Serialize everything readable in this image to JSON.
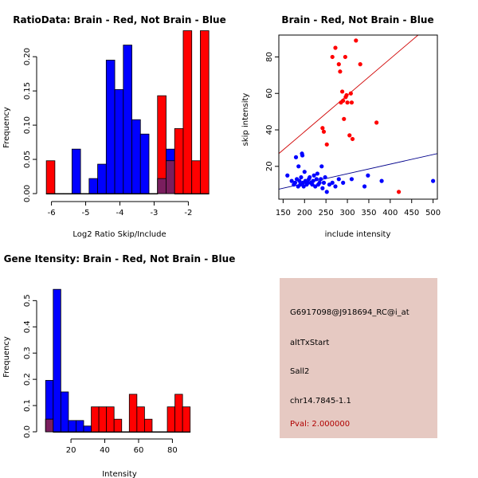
{
  "colors": {
    "brain": "#ff0000",
    "not_brain": "#0000ff",
    "overlap": "#7a1e5e",
    "info_bg": "#e6c9c2",
    "pval": "#b00000"
  },
  "chart_data": [
    {
      "id": "ratio",
      "type": "bar",
      "title": "RatioData: Brain - Red, Not Brain - Blue",
      "xlabel": "Log2 Ratio Skip/Include",
      "ylabel": "Frequency",
      "xlim": [
        -6.2,
        -1.8
      ],
      "ylim": [
        0,
        0.22
      ],
      "xticks": [
        -6,
        -5,
        -4,
        -3,
        -2
      ],
      "yticks": [
        0.0,
        0.05,
        0.1,
        0.15,
        0.2
      ],
      "ytick_labels": [
        "0.00",
        "0.05",
        "0.10",
        "0.15",
        "0.20"
      ],
      "bin_start": -6.15,
      "bin_width": 0.25,
      "series": [
        {
          "name": "Not Brain",
          "color": "blue",
          "values": [
            0,
            0,
            0,
            0.065,
            0,
            0.022,
            0.043,
            0.195,
            0.152,
            0.217,
            0.108,
            0.087,
            0,
            0.022,
            0.065,
            0,
            0,
            0,
            0
          ]
        },
        {
          "name": "Brain",
          "color": "red",
          "values": [
            0.048,
            0,
            0,
            0,
            0,
            0,
            0,
            0,
            0,
            0,
            0,
            0,
            0,
            0.143,
            0.048,
            0.095,
            0.238,
            0.048,
            0.238
          ]
        }
      ]
    },
    {
      "id": "scatter",
      "type": "scatter",
      "title": "Brain - Red, Not Brain - Blue",
      "xlabel": "include intensity",
      "ylabel": "skip intensity",
      "xlim": [
        140,
        510
      ],
      "ylim": [
        2,
        92
      ],
      "xticks": [
        150,
        200,
        250,
        300,
        350,
        400,
        450,
        500
      ],
      "yticks": [
        20,
        40,
        60,
        80
      ],
      "series": [
        {
          "name": "Not Brain",
          "color": "blue",
          "points": [
            [
              160,
              15
            ],
            [
              170,
              12
            ],
            [
              175,
              10
            ],
            [
              178,
              11
            ],
            [
              180,
              25
            ],
            [
              182,
              13
            ],
            [
              185,
              9
            ],
            [
              186,
              20
            ],
            [
              188,
              12
            ],
            [
              190,
              10
            ],
            [
              192,
              14
            ],
            [
              194,
              27
            ],
            [
              195,
              26
            ],
            [
              196,
              11
            ],
            [
              198,
              9
            ],
            [
              200,
              17
            ],
            [
              202,
              12
            ],
            [
              205,
              10
            ],
            [
              208,
              11
            ],
            [
              210,
              13
            ],
            [
              212,
              14
            ],
            [
              215,
              11
            ],
            [
              218,
              10
            ],
            [
              220,
              12
            ],
            [
              222,
              15
            ],
            [
              225,
              9
            ],
            [
              228,
              13
            ],
            [
              230,
              16
            ],
            [
              232,
              10
            ],
            [
              235,
              11
            ],
            [
              238,
              13
            ],
            [
              240,
              20
            ],
            [
              242,
              8
            ],
            [
              245,
              11
            ],
            [
              248,
              14
            ],
            [
              252,
              6
            ],
            [
              258,
              10
            ],
            [
              265,
              11
            ],
            [
              272,
              9
            ],
            [
              280,
              13
            ],
            [
              290,
              11
            ],
            [
              310,
              13
            ],
            [
              340,
              9
            ],
            [
              348,
              15
            ],
            [
              380,
              12
            ],
            [
              500,
              12
            ]
          ],
          "trend": [
            [
              140,
              7.5
            ],
            [
              510,
              27
            ]
          ]
        },
        {
          "name": "Brain",
          "color": "red",
          "points": [
            [
              242,
              41
            ],
            [
              245,
              39
            ],
            [
              252,
              32
            ],
            [
              265,
              80
            ],
            [
              272,
              85
            ],
            [
              280,
              76
            ],
            [
              283,
              72
            ],
            [
              285,
              55
            ],
            [
              288,
              61
            ],
            [
              290,
              56
            ],
            [
              292,
              46
            ],
            [
              295,
              80
            ],
            [
              296,
              58
            ],
            [
              298,
              59
            ],
            [
              300,
              55
            ],
            [
              305,
              37
            ],
            [
              308,
              60
            ],
            [
              310,
              55
            ],
            [
              312,
              35
            ],
            [
              320,
              89
            ],
            [
              330,
              76
            ],
            [
              368,
              44
            ],
            [
              420,
              6
            ]
          ],
          "trend": [
            [
              140,
              27
            ],
            [
              465,
              92
            ]
          ]
        }
      ]
    },
    {
      "id": "intensity",
      "type": "bar",
      "title": "Gene Itensity: Brain - Red, Not Brain - Blue",
      "xlabel": "Intensity",
      "ylabel": "Frequency",
      "xlim": [
        3,
        93
      ],
      "ylim": [
        0,
        0.58
      ],
      "xticks": [
        20,
        40,
        60,
        80
      ],
      "yticks": [
        0.0,
        0.1,
        0.2,
        0.3,
        0.4,
        0.5
      ],
      "ytick_labels": [
        "0.0",
        "0.1",
        "0.2",
        "0.3",
        "0.4",
        "0.5"
      ],
      "bin_start": 5,
      "bin_width": 4.5,
      "series": [
        {
          "name": "Not Brain",
          "color": "blue",
          "values": [
            0.196,
            0.543,
            0.152,
            0.043,
            0.043,
            0.022,
            0,
            0,
            0,
            0,
            0,
            0,
            0,
            0,
            0,
            0,
            0,
            0,
            0
          ]
        },
        {
          "name": "Brain",
          "color": "red",
          "values": [
            0.048,
            0,
            0,
            0,
            0,
            0,
            0.095,
            0.095,
            0.095,
            0.048,
            0,
            0.143,
            0.095,
            0.048,
            0,
            0,
            0.095,
            0.143,
            0.095
          ]
        }
      ]
    }
  ],
  "info": {
    "probe_id": "G6917098@J918694_RC@i_at",
    "event_type": "altTxStart",
    "gene": "Sall2",
    "location": "chr14.7845-1.1",
    "pval": "Pval: 2.000000"
  }
}
